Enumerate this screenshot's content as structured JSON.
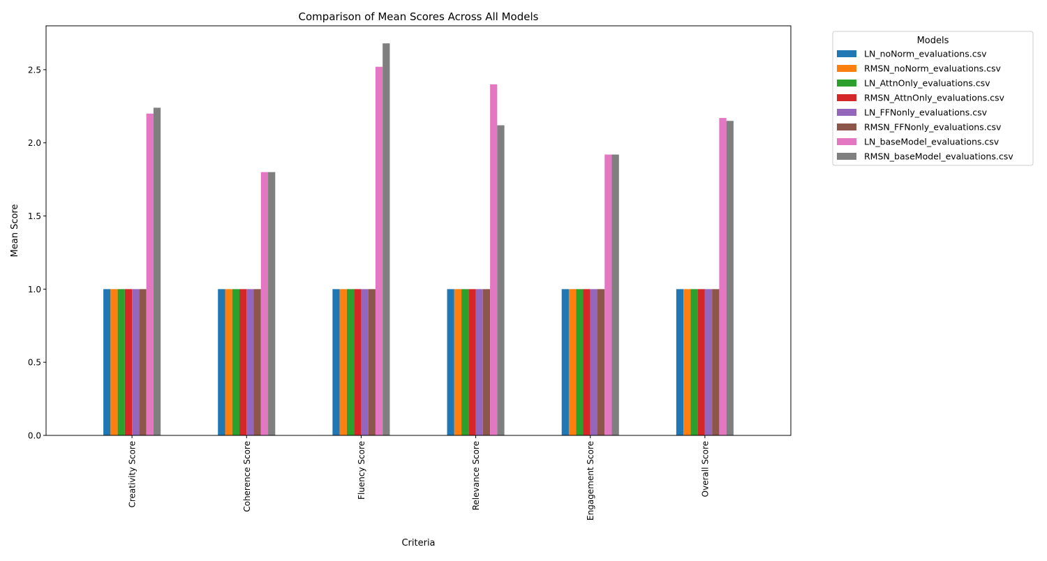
{
  "chart_data": {
    "type": "bar",
    "title": "Comparison of Mean Scores Across All Models",
    "xlabel": "Criteria",
    "ylabel": "Mean Score",
    "ylim": [
      0,
      2.8
    ],
    "yticks": [
      "0.0",
      "0.5",
      "1.0",
      "1.5",
      "2.0",
      "2.5"
    ],
    "grid": false,
    "legend": {
      "title": "Models",
      "placement": "outside-top-right"
    },
    "categories": [
      "Creativity Score",
      "Coherence Score",
      "Fluency Score",
      "Relevance Score",
      "Engagement Score",
      "Overall Score"
    ],
    "series": [
      {
        "name": "LN_noNorm_evaluations.csv",
        "color": "#1f77b4",
        "values": [
          1.0,
          1.0,
          1.0,
          1.0,
          1.0,
          1.0
        ]
      },
      {
        "name": "RMSN_noNorm_evaluations.csv",
        "color": "#ff7f0e",
        "values": [
          1.0,
          1.0,
          1.0,
          1.0,
          1.0,
          1.0
        ]
      },
      {
        "name": "LN_AttnOnly_evaluations.csv",
        "color": "#2ca02c",
        "values": [
          1.0,
          1.0,
          1.0,
          1.0,
          1.0,
          1.0
        ]
      },
      {
        "name": "RMSN_AttnOnly_evaluations.csv",
        "color": "#d62728",
        "values": [
          1.0,
          1.0,
          1.0,
          1.0,
          1.0,
          1.0
        ]
      },
      {
        "name": "LN_FFNonly_evaluations.csv",
        "color": "#9467bd",
        "values": [
          1.0,
          1.0,
          1.0,
          1.0,
          1.0,
          1.0
        ]
      },
      {
        "name": "RMSN_FFNonly_evaluations.csv",
        "color": "#8c564b",
        "values": [
          1.0,
          1.0,
          1.0,
          1.0,
          1.0,
          1.0
        ]
      },
      {
        "name": "LN_baseModel_evaluations.csv",
        "color": "#e377c2",
        "values": [
          2.2,
          1.8,
          2.52,
          2.4,
          1.92,
          2.17
        ]
      },
      {
        "name": "RMSN_baseModel_evaluations.csv",
        "color": "#7f7f7f",
        "values": [
          2.24,
          1.8,
          2.68,
          2.12,
          1.92,
          2.15
        ]
      }
    ]
  }
}
